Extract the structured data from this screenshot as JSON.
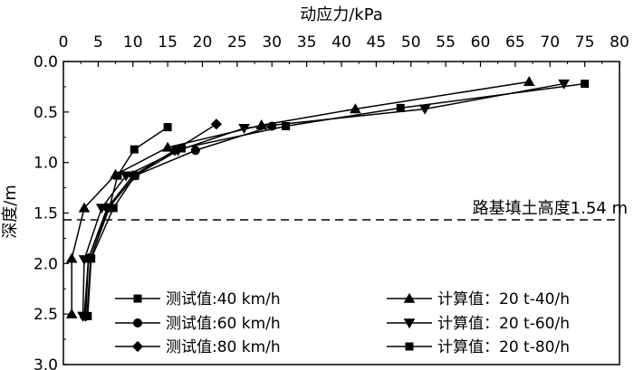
{
  "chart_data": {
    "type": "line",
    "x_axis": {
      "label": "动应力/kPa",
      "position": "top",
      "range": [
        0,
        80
      ],
      "ticks": [
        0,
        5,
        10,
        15,
        20,
        25,
        30,
        35,
        40,
        45,
        50,
        55,
        60,
        65,
        70,
        75,
        80
      ],
      "tick_labels": [
        "0",
        "5",
        "10",
        "15",
        "20",
        "25",
        "30",
        "35",
        "40",
        "45",
        "50",
        "55",
        "60",
        "65",
        "70",
        "75",
        "80"
      ]
    },
    "y_axis": {
      "label": "深度/m",
      "range": [
        0,
        3.0
      ],
      "inverted": true,
      "ticks": [
        0,
        0.5,
        1.0,
        1.5,
        2.0,
        2.5,
        3.0
      ],
      "tick_labels": [
        "0.0",
        "0.5",
        "1.0",
        "1.5",
        "2.0",
        "2.5",
        "3.0"
      ]
    },
    "grid": false,
    "annotation": {
      "text": "路基填土高度1.54 m",
      "depth": 1.54,
      "line_style": "dashed"
    },
    "legend": {
      "placement": "bottom",
      "columns": 2
    },
    "series": [
      {
        "name": "测试值:40 km/h",
        "marker": "square",
        "points": [
          [
            15,
            0.65
          ],
          [
            10.2,
            0.87
          ],
          [
            7.8,
            1.13
          ],
          [
            6.6,
            1.45
          ],
          [
            3.9,
            1.95
          ],
          [
            3.4,
            2.52
          ]
        ]
      },
      {
        "name": "测试值:60 km/h",
        "marker": "circle",
        "points": [
          [
            30,
            0.64
          ],
          [
            19,
            0.88
          ],
          [
            10.3,
            1.13
          ],
          [
            6.5,
            1.45
          ],
          [
            3.6,
            1.95
          ],
          [
            3.0,
            2.52
          ]
        ]
      },
      {
        "name": "测试值:80 km/h",
        "marker": "diamond",
        "points": [
          [
            22,
            0.62
          ],
          [
            16,
            0.88
          ],
          [
            10,
            1.13
          ],
          [
            6.3,
            1.45
          ],
          [
            3.6,
            1.95
          ],
          [
            3.2,
            2.52
          ]
        ]
      },
      {
        "name": "计算值：20 t-40/h",
        "marker": "triangle-up",
        "points": [
          [
            67,
            0.2
          ],
          [
            42,
            0.47
          ],
          [
            28.5,
            0.63
          ],
          [
            15,
            0.85
          ],
          [
            7.5,
            1.12
          ],
          [
            3.0,
            1.45
          ],
          [
            1.2,
            1.95
          ],
          [
            1.2,
            2.5
          ]
        ]
      },
      {
        "name": "计算值：20 t-60/h",
        "marker": "triangle-down",
        "points": [
          [
            72,
            0.22
          ],
          [
            52,
            0.47
          ],
          [
            26,
            0.66
          ],
          [
            16.5,
            0.88
          ],
          [
            9,
            1.13
          ],
          [
            5.5,
            1.45
          ],
          [
            3.0,
            1.96
          ],
          [
            2.8,
            2.52
          ]
        ]
      },
      {
        "name": "计算值：20 t-80/h",
        "marker": "square",
        "points": [
          [
            75,
            0.22
          ],
          [
            48.5,
            0.46
          ],
          [
            32,
            0.64
          ],
          [
            17,
            0.86
          ],
          [
            10.3,
            1.13
          ],
          [
            7.2,
            1.45
          ],
          [
            4.0,
            1.95
          ],
          [
            3.5,
            2.52
          ]
        ]
      }
    ]
  }
}
